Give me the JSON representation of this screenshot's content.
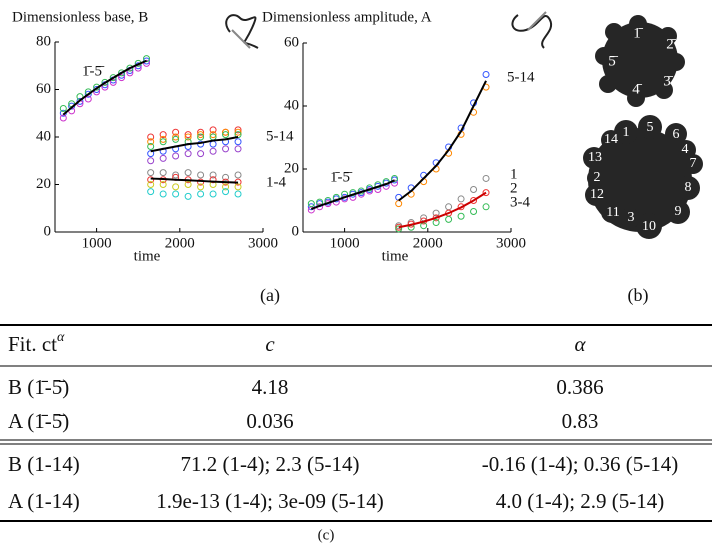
{
  "chart_data": [
    {
      "type": "scatter",
      "title": "Dimensionless base, B",
      "xlabel": "time",
      "xlim": [
        500,
        3000
      ],
      "xticks": [
        1000,
        2000,
        3000
      ],
      "ylim": [
        0,
        80
      ],
      "yticks": [
        0,
        20,
        40,
        60,
        80
      ],
      "annotations": [
        "1̄-5̄",
        "5-14",
        "1-4"
      ],
      "series": [
        {
          "type": "scatter",
          "color": "#3355ff",
          "x": [
            600,
            700,
            800,
            900,
            1000,
            1100,
            1200,
            1300,
            1400,
            1500,
            1600
          ],
          "values": [
            50,
            53,
            55,
            58,
            60,
            62,
            64,
            66,
            68,
            70,
            72
          ]
        },
        {
          "type": "scatter",
          "color": "#cc33cc",
          "x": [
            600,
            700,
            800,
            900,
            1000,
            1100,
            1200,
            1300,
            1400,
            1500,
            1600
          ],
          "values": [
            48,
            51,
            54,
            56,
            59,
            61,
            63,
            65,
            67,
            69,
            71
          ]
        },
        {
          "type": "scatter",
          "color": "#33bb55",
          "x": [
            600,
            700,
            800,
            900,
            1000,
            1100,
            1200,
            1300,
            1400,
            1500,
            1600
          ],
          "values": [
            52,
            54,
            57,
            59,
            61,
            63,
            65,
            67,
            69,
            71,
            73
          ]
        },
        {
          "type": "scatter",
          "color": "#ee3333",
          "x": [
            1650,
            1800,
            1950,
            2100,
            2250,
            2400,
            2550,
            2700
          ],
          "values": [
            40,
            41,
            42,
            41,
            42,
            43,
            42,
            43
          ]
        },
        {
          "type": "scatter",
          "color": "#ff8800",
          "x": [
            1650,
            1800,
            1950,
            2100,
            2250,
            2400,
            2550,
            2700
          ],
          "values": [
            38,
            39,
            40,
            40,
            41,
            41,
            42,
            42
          ]
        },
        {
          "type": "scatter",
          "color": "#33bb55",
          "x": [
            1650,
            1800,
            1950,
            2100,
            2250,
            2400,
            2550,
            2700
          ],
          "values": [
            36,
            38,
            39,
            38,
            40,
            40,
            41,
            41
          ]
        },
        {
          "type": "scatter",
          "color": "#3355ff",
          "x": [
            1650,
            1800,
            1950,
            2100,
            2250,
            2400,
            2550,
            2700
          ],
          "values": [
            33,
            34,
            35,
            36,
            37,
            37,
            38,
            38
          ]
        },
        {
          "type": "scatter",
          "color": "#9944cc",
          "x": [
            1650,
            1800,
            1950,
            2100,
            2250,
            2400,
            2550,
            2700
          ],
          "values": [
            30,
            31,
            32,
            33,
            33,
            34,
            35,
            35
          ]
        },
        {
          "type": "scatter",
          "color": "#888888",
          "x": [
            1650,
            1800,
            1950,
            2100,
            2250,
            2400,
            2550,
            2700
          ],
          "values": [
            25,
            25,
            24,
            25,
            24,
            24,
            23,
            24
          ]
        },
        {
          "type": "scatter",
          "color": "#ee3333",
          "x": [
            1650,
            1800,
            1950,
            2100,
            2250,
            2400,
            2550,
            2700
          ],
          "values": [
            22,
            22,
            23,
            22,
            21,
            22,
            21,
            21
          ]
        },
        {
          "type": "scatter",
          "color": "#cccc22",
          "x": [
            1650,
            1800,
            1950,
            2100,
            2250,
            2400,
            2550,
            2700
          ],
          "values": [
            20,
            20,
            19,
            20,
            19,
            20,
            19,
            19
          ]
        },
        {
          "type": "scatter",
          "color": "#22cccc",
          "x": [
            1650,
            1800,
            1950,
            2100,
            2250,
            2400,
            2550,
            2700
          ],
          "values": [
            17,
            16,
            16,
            15,
            16,
            16,
            17,
            16
          ]
        },
        {
          "type": "line",
          "color": "#000000",
          "x": [
            600,
            700,
            800,
            900,
            1000,
            1100,
            1200,
            1300,
            1400,
            1500,
            1600
          ],
          "values": [
            49.4,
            52.4,
            55.4,
            58.0,
            60.5,
            62.8,
            64.9,
            67.0,
            69.0,
            70.6,
            72.1
          ]
        },
        {
          "type": "line",
          "color": "#000000",
          "x": [
            1650,
            1800,
            1950,
            2100,
            2250,
            2400,
            2550,
            2700
          ],
          "values": [
            34,
            35,
            36,
            37,
            37.5,
            38.5,
            39,
            40
          ]
        },
        {
          "type": "line",
          "color": "#000000",
          "x": [
            1650,
            1800,
            1950,
            2100,
            2250,
            2400,
            2550,
            2700
          ],
          "values": [
            22.5,
            22.3,
            22,
            21.8,
            21.5,
            21.2,
            21,
            20.8
          ]
        }
      ]
    },
    {
      "type": "scatter",
      "title": "Dimensionless amplitude, A",
      "xlabel": "time",
      "xlim": [
        500,
        3000
      ],
      "xticks": [
        1000,
        2000,
        3000
      ],
      "ylim": [
        0,
        60
      ],
      "yticks": [
        0,
        20,
        40,
        60
      ],
      "annotations": [
        "1̄-5̄",
        "5-14",
        "1",
        "2",
        "3-4"
      ],
      "series": [
        {
          "type": "scatter",
          "color": "#3355ff",
          "x": [
            600,
            700,
            800,
            900,
            1000,
            1100,
            1200,
            1300,
            1400,
            1500,
            1600
          ],
          "values": [
            8,
            9,
            9.5,
            10.5,
            11,
            12,
            12.5,
            13.5,
            14.5,
            15.5,
            16.5
          ]
        },
        {
          "type": "scatter",
          "color": "#cc33cc",
          "x": [
            600,
            700,
            800,
            900,
            1000,
            1100,
            1200,
            1300,
            1400,
            1500,
            1600
          ],
          "values": [
            7,
            8,
            9,
            9.5,
            10.5,
            11,
            12,
            13,
            13.5,
            14.5,
            15.5
          ]
        },
        {
          "type": "scatter",
          "color": "#33bb55",
          "x": [
            600,
            700,
            800,
            900,
            1000,
            1100,
            1200,
            1300,
            1400,
            1500,
            1600
          ],
          "values": [
            9,
            9.5,
            10,
            11,
            12,
            12.5,
            13,
            14,
            15,
            16,
            17
          ]
        },
        {
          "type": "scatter",
          "color": "#3355ff",
          "x": [
            1650,
            1800,
            1950,
            2100,
            2250,
            2400,
            2550,
            2700
          ],
          "values": [
            11,
            14,
            18,
            22,
            27,
            33,
            41,
            50
          ]
        },
        {
          "type": "scatter",
          "color": "#ff8800",
          "x": [
            1650,
            1800,
            1950,
            2100,
            2250,
            2400,
            2550,
            2700
          ],
          "values": [
            9,
            12,
            16,
            20,
            25,
            31,
            38,
            46
          ]
        },
        {
          "type": "scatter",
          "color": "#888888",
          "x": [
            1650,
            1800,
            1950,
            2100,
            2250,
            2400,
            2550,
            2700
          ],
          "values": [
            2,
            3,
            4.5,
            6,
            8,
            10.5,
            13.5,
            17
          ]
        },
        {
          "type": "scatter",
          "color": "#ee3333",
          "x": [
            1650,
            1800,
            1950,
            2100,
            2250,
            2400,
            2550,
            2700
          ],
          "values": [
            1.5,
            2.5,
            3.5,
            4.5,
            6,
            8,
            10,
            12.5
          ]
        },
        {
          "type": "scatter",
          "color": "#33bb55",
          "x": [
            1650,
            1800,
            1950,
            2100,
            2250,
            2400,
            2550,
            2700
          ],
          "values": [
            1,
            1.5,
            2,
            3,
            4,
            5,
            6.5,
            8
          ]
        },
        {
          "type": "line",
          "color": "#000000",
          "x": [
            600,
            700,
            800,
            900,
            1000,
            1100,
            1200,
            1300,
            1400,
            1500,
            1600
          ],
          "values": [
            7.3,
            8.3,
            9.2,
            10.1,
            11.0,
            11.9,
            12.7,
            13.5,
            14.4,
            15.2,
            16.4
          ]
        },
        {
          "type": "line",
          "color": "#000000",
          "x": [
            1650,
            1800,
            1950,
            2100,
            2250,
            2400,
            2550,
            2700
          ],
          "values": [
            10,
            13,
            17,
            21,
            26,
            32,
            40,
            48
          ]
        },
        {
          "type": "line",
          "color": "#cc0000",
          "x": [
            1650,
            1800,
            1950,
            2100,
            2250,
            2400,
            2550,
            2700
          ],
          "values": [
            1.5,
            2.3,
            3.3,
            4.5,
            6,
            7.8,
            10,
            12.5
          ]
        }
      ]
    }
  ],
  "panel_labels": [
    "(a)",
    "(b)",
    "(c)"
  ],
  "shapes": {
    "top_labels": [
      "1̄",
      "2̄",
      "3̄",
      "4̄",
      "5̄"
    ],
    "bottom_labels": [
      "1",
      "5",
      "6",
      "4",
      "7",
      "8",
      "9",
      "10",
      "3",
      "11",
      "12",
      "2",
      "13",
      "14"
    ]
  },
  "table": {
    "header": [
      {
        "text": "Fit. ct",
        "sup": "α"
      },
      "c",
      "α"
    ],
    "rows": [
      [
        "B (1̄-5̄)",
        "4.18",
        "0.386"
      ],
      [
        "A (1̄-5̄)",
        "0.036",
        "0.83"
      ],
      [
        "B (1-14)",
        "71.2 (1-4); 2.3 (5-14)",
        "-0.16 (1-4); 0.36 (5-14)"
      ],
      [
        "A (1-14)",
        "1.9e-13 (1-4); 3e-09 (5-14)",
        "4.0 (1-4); 2.9 (5-14)"
      ]
    ]
  }
}
